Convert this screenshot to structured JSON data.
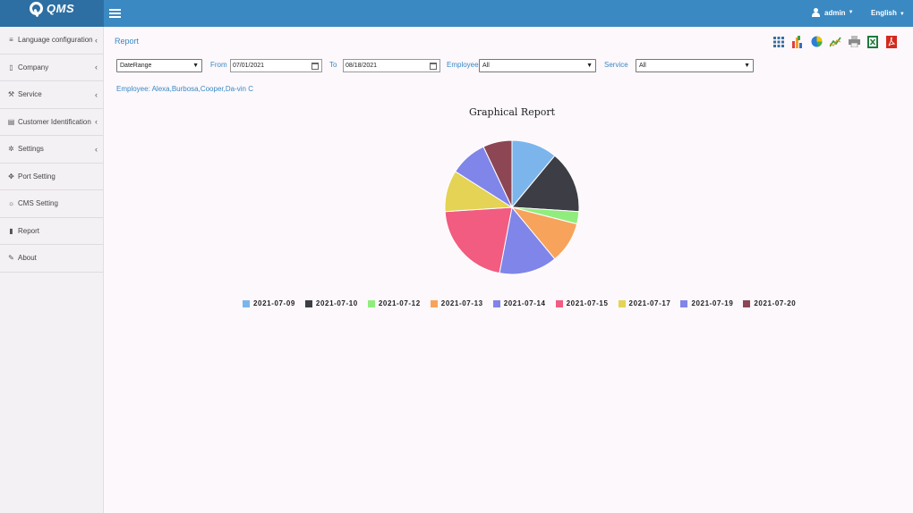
{
  "header": {
    "logo_text": "QMS",
    "user": "admin",
    "language": "English"
  },
  "sidebar": {
    "items": [
      {
        "label": "Language configuration",
        "icon": "database-icon",
        "has_submenu": true
      },
      {
        "label": "Company",
        "icon": "building-icon",
        "has_submenu": true
      },
      {
        "label": "Service",
        "icon": "wrench-icon",
        "has_submenu": true
      },
      {
        "label": "Customer Identification",
        "icon": "id-card-icon",
        "has_submenu": true
      },
      {
        "label": "Settings",
        "icon": "gear-icon",
        "has_submenu": true
      },
      {
        "label": "Port Setting",
        "icon": "plug-icon",
        "has_submenu": false
      },
      {
        "label": "CMS Setting",
        "icon": "cog-outline-icon",
        "has_submenu": false
      },
      {
        "label": "Report",
        "icon": "file-icon",
        "has_submenu": false
      },
      {
        "label": "About",
        "icon": "edit-icon",
        "has_submenu": false
      }
    ]
  },
  "page": {
    "title": "Report"
  },
  "toolbar": {
    "icons": [
      "grid-icon",
      "bar-chart-icon",
      "pie-chart-icon",
      "line-chart-icon",
      "print-icon",
      "excel-icon",
      "pdf-icon"
    ]
  },
  "filters": {
    "range_type": "DateRange",
    "from_label": "From",
    "from_value": "07/01/2021",
    "to_label": "To",
    "to_value": "08/18/2021",
    "employee_label": "Employee",
    "employee_value": "All",
    "service_label": "Service",
    "service_value": "All"
  },
  "employee_line": "Employee: Alexa,Burbosa,Cooper,Da-vin C",
  "chart_data": {
    "type": "pie",
    "title": "Graphical Report",
    "legend_position": "bottom",
    "categories": [
      "2021-07-09",
      "2021-07-10",
      "2021-07-12",
      "2021-07-13",
      "2021-07-14",
      "2021-07-15",
      "2021-07-17",
      "2021-07-19",
      "2021-07-20"
    ],
    "values": [
      11,
      15,
      3,
      10,
      14,
      21,
      10,
      9,
      7
    ],
    "colors": [
      "#7cb5ec",
      "#3d3d45",
      "#90ed7d",
      "#f7a35c",
      "#8085e9",
      "#f15c80",
      "#e4d354",
      "#8085e9",
      "#8d4653"
    ]
  }
}
